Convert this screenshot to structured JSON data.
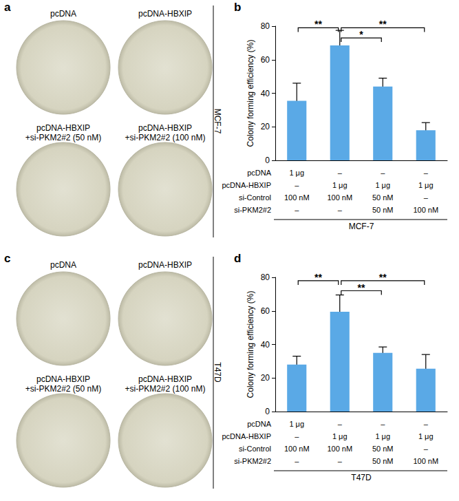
{
  "chart_data": [
    {
      "type": "bar",
      "panel_label": "b",
      "cell_line": "MCF-7",
      "y_label": "Colony forming efficiency (%)",
      "categories": [
        null,
        null,
        null,
        null
      ],
      "values": [
        35.5,
        68.5,
        44,
        18
      ],
      "errors": [
        10.5,
        9,
        5,
        4.5
      ],
      "color": "#5aa9e6",
      "ylim": [
        0,
        80
      ],
      "yticks": [
        0,
        20,
        40,
        60,
        80
      ],
      "grid": false,
      "treatments": [
        {
          "name": "pcDNA",
          "values": [
            "1 μg",
            "–",
            "–",
            "–"
          ]
        },
        {
          "name": "pcDNA-HBXIP",
          "values": [
            "–",
            "1 μg",
            "1 μg",
            "1 μg"
          ]
        },
        {
          "name": "si-Control",
          "values": [
            "100 nM",
            "100 nM",
            "50 nM",
            "–"
          ]
        },
        {
          "name": "si-PKM2#2",
          "values": [
            "–",
            "–",
            "50 nM",
            "100 nM"
          ]
        }
      ],
      "significance": [
        {
          "from": 0,
          "to": 1,
          "y": 79,
          "label": "**"
        },
        {
          "from": 1,
          "to": 2,
          "y": 73,
          "label": "*"
        },
        {
          "from": 1,
          "to": 3,
          "y": 79,
          "label": "**"
        }
      ]
    },
    {
      "type": "bar",
      "panel_label": "d",
      "cell_line": "T47D",
      "y_label": "Colony forming efficiency (%)",
      "categories": [
        null,
        null,
        null,
        null
      ],
      "values": [
        28,
        59.5,
        35,
        25.5
      ],
      "errors": [
        5,
        10,
        3.5,
        8.5
      ],
      "color": "#5aa9e6",
      "ylim": [
        0,
        80
      ],
      "yticks": [
        0,
        20,
        40,
        60,
        80
      ],
      "grid": false,
      "treatments": [
        {
          "name": "pcDNA",
          "values": [
            "1 μg",
            "–",
            "–",
            "–"
          ]
        },
        {
          "name": "pcDNA-HBXIP",
          "values": [
            "–",
            "1 μg",
            "1 μg",
            "1 μg"
          ]
        },
        {
          "name": "si-Control",
          "values": [
            "100 nM",
            "100 nM",
            "50 nM",
            "–"
          ]
        },
        {
          "name": "si-PKM2#2",
          "values": [
            "–",
            "–",
            "50 nM",
            "100 nM"
          ]
        }
      ],
      "significance": [
        {
          "from": 0,
          "to": 1,
          "y": 78,
          "label": "**"
        },
        {
          "from": 1,
          "to": 2,
          "y": 72,
          "label": "**"
        },
        {
          "from": 1,
          "to": 3,
          "y": 78,
          "label": "**"
        }
      ]
    }
  ],
  "plates": [
    {
      "panel_label": "a",
      "cell_line": "MCF-7",
      "labels": [
        [
          "pcDNA"
        ],
        [
          "pcDNA-HBXIP"
        ],
        [
          "pcDNA-HBXIP",
          "+si-PKM2#2 (50 nM)"
        ],
        [
          "pcDNA-HBXIP",
          "+si-PKM2#2 (100 nM)"
        ]
      ]
    },
    {
      "panel_label": "c",
      "cell_line": "T47D",
      "labels": [
        [
          "pcDNA"
        ],
        [
          "pcDNA-HBXIP"
        ],
        [
          "pcDNA-HBXIP",
          "+si-PKM2#2 (50 nM)"
        ],
        [
          "pcDNA-HBXIP",
          "+si-PKM2#2 (100 nM)"
        ]
      ]
    }
  ]
}
